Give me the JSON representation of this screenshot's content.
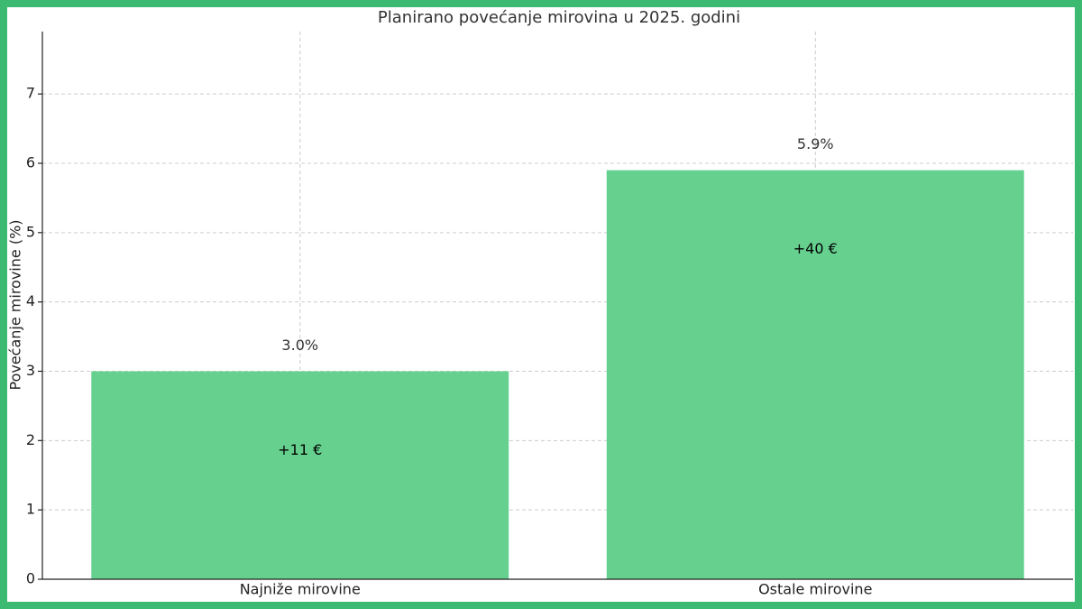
{
  "chart_data": {
    "type": "bar",
    "title": "Planirano povećanje mirovina u 2025. godini",
    "y_label": "Povećanje mirovine (%)",
    "categories": [
      "Najniže mirovine",
      "Ostale mirovine"
    ],
    "values": [
      3.0,
      5.9
    ],
    "value_labels": [
      "3.0%",
      "5.9%"
    ],
    "annotations": [
      "+11 €",
      "+40 €"
    ],
    "color": "#66d18f",
    "ylim": [
      0,
      7.9
    ],
    "yticks": [
      0,
      1,
      2,
      3,
      4,
      5,
      6,
      7
    ],
    "grid": true
  }
}
